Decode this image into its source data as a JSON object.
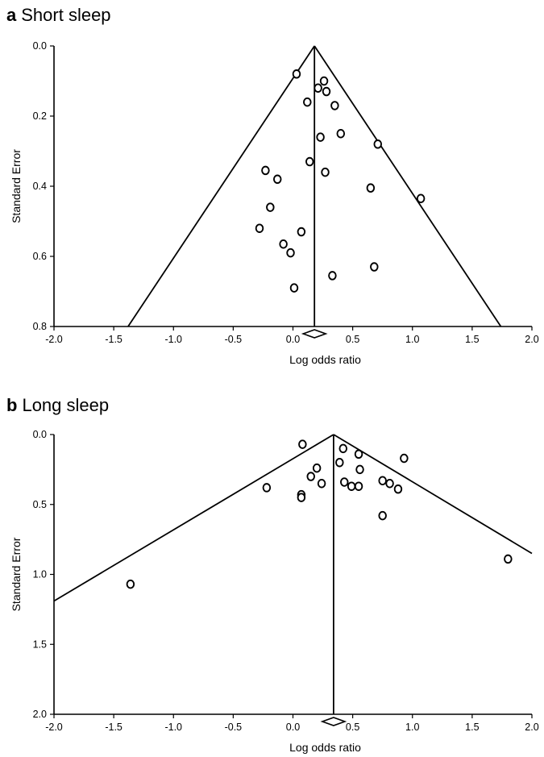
{
  "chart_data": [
    {
      "type": "scatter",
      "panel_letter": "a",
      "title": "Short sleep",
      "xlabel": "Log odds ratio",
      "ylabel": "Standard Error",
      "xlim": [
        -2.0,
        2.0
      ],
      "ylim": [
        0.0,
        0.8
      ],
      "y_reversed": true,
      "xticks": [
        "-2.0",
        "-1.5",
        "-1.0",
        "-0.5",
        "0.0",
        "0.5",
        "1.0",
        "1.5",
        "2.0"
      ],
      "yticks": [
        "0.0",
        "0.2",
        "0.4",
        "0.6",
        "0.8"
      ],
      "pooled_log_or": 0.18,
      "funnel_limits_at_max_se": [
        -1.38,
        1.74
      ],
      "points": [
        {
          "x": 0.03,
          "y": 0.08
        },
        {
          "x": 0.26,
          "y": 0.1
        },
        {
          "x": 0.21,
          "y": 0.12
        },
        {
          "x": 0.28,
          "y": 0.13
        },
        {
          "x": 0.12,
          "y": 0.16
        },
        {
          "x": 0.35,
          "y": 0.17
        },
        {
          "x": 0.23,
          "y": 0.26
        },
        {
          "x": 0.4,
          "y": 0.25
        },
        {
          "x": 0.71,
          "y": 0.28
        },
        {
          "x": 0.14,
          "y": 0.33
        },
        {
          "x": 0.27,
          "y": 0.36
        },
        {
          "x": -0.23,
          "y": 0.355
        },
        {
          "x": -0.13,
          "y": 0.38
        },
        {
          "x": 0.65,
          "y": 0.405
        },
        {
          "x": 1.07,
          "y": 0.435
        },
        {
          "x": -0.19,
          "y": 0.46
        },
        {
          "x": -0.28,
          "y": 0.52
        },
        {
          "x": 0.07,
          "y": 0.53
        },
        {
          "x": -0.08,
          "y": 0.565
        },
        {
          "x": -0.02,
          "y": 0.59
        },
        {
          "x": 0.68,
          "y": 0.63
        },
        {
          "x": 0.33,
          "y": 0.655
        },
        {
          "x": 0.01,
          "y": 0.69
        }
      ]
    },
    {
      "type": "scatter",
      "panel_letter": "b",
      "title": "Long sleep",
      "xlabel": "Log odds ratio",
      "ylabel": "Standard Error",
      "xlim": [
        -2.0,
        2.0
      ],
      "ylim": [
        0.0,
        2.0
      ],
      "y_reversed": true,
      "xticks": [
        "-2.0",
        "-1.5",
        "-1.0",
        "-0.5",
        "0.0",
        "0.5",
        "1.0",
        "1.5",
        "2.0"
      ],
      "yticks": [
        "0.0",
        "0.5",
        "1.0",
        "1.5",
        "2.0"
      ],
      "pooled_log_or": 0.34,
      "funnel_limits_at_max_se": [
        -2.0,
        2.0
      ],
      "funnel_se_at_limits": [
        1.19,
        0.85
      ],
      "points": [
        {
          "x": 0.08,
          "y": 0.07
        },
        {
          "x": 0.42,
          "y": 0.1
        },
        {
          "x": 0.55,
          "y": 0.14
        },
        {
          "x": 0.93,
          "y": 0.17
        },
        {
          "x": 0.39,
          "y": 0.2
        },
        {
          "x": 0.2,
          "y": 0.24
        },
        {
          "x": 0.56,
          "y": 0.25
        },
        {
          "x": 0.15,
          "y": 0.3
        },
        {
          "x": 0.75,
          "y": 0.33
        },
        {
          "x": 0.43,
          "y": 0.34
        },
        {
          "x": 0.24,
          "y": 0.35
        },
        {
          "x": 0.81,
          "y": 0.35
        },
        {
          "x": 0.49,
          "y": 0.37
        },
        {
          "x": 0.55,
          "y": 0.37
        },
        {
          "x": -0.22,
          "y": 0.38
        },
        {
          "x": 0.88,
          "y": 0.39
        },
        {
          "x": 0.07,
          "y": 0.43
        },
        {
          "x": 0.07,
          "y": 0.45
        },
        {
          "x": 0.75,
          "y": 0.58
        },
        {
          "x": 1.8,
          "y": 0.89
        },
        {
          "x": -1.36,
          "y": 1.07
        }
      ]
    }
  ]
}
